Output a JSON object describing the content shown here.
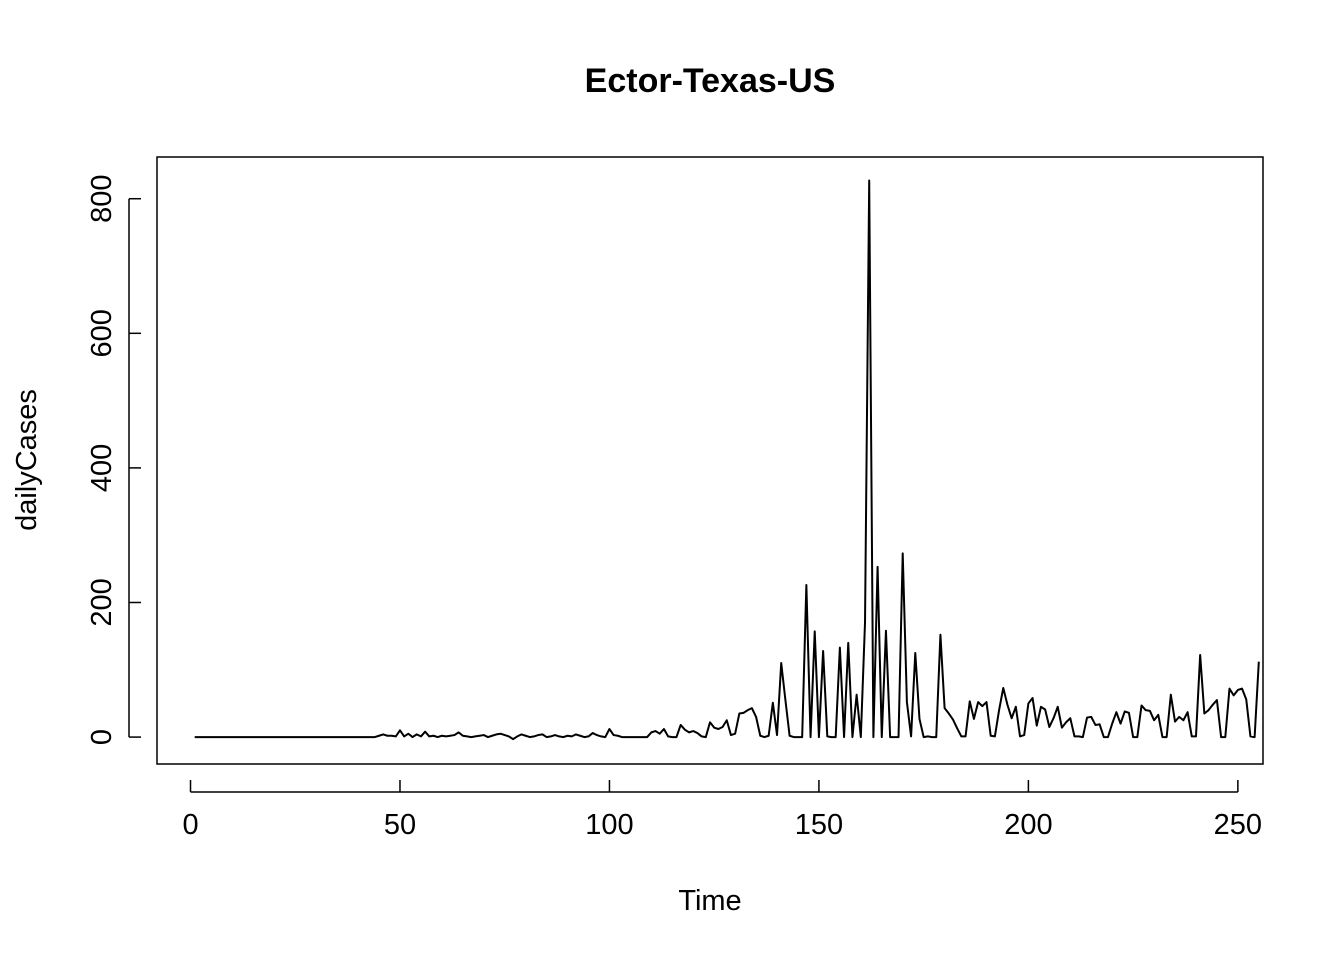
{
  "chart_data": {
    "type": "line",
    "title": "Ector-Texas-US",
    "xlabel": "Time",
    "ylabel": "dailyCases",
    "xlim": [
      -8,
      256
    ],
    "ylim": [
      -40,
      862
    ],
    "x_ticks": [
      0,
      50,
      100,
      150,
      200,
      250
    ],
    "y_ticks": [
      0,
      200,
      400,
      600,
      800
    ],
    "grid": false,
    "series": [
      {
        "x_start": 1,
        "values": [
          0,
          0,
          0,
          0,
          0,
          0,
          0,
          0,
          0,
          0,
          0,
          0,
          0,
          0,
          0,
          0,
          0,
          0,
          0,
          0,
          0,
          0,
          0,
          0,
          0,
          0,
          0,
          0,
          0,
          0,
          0,
          0,
          0,
          0,
          0,
          0,
          0,
          0,
          0,
          0,
          0,
          0,
          0,
          0,
          2,
          4,
          2,
          2,
          1,
          10,
          1,
          5,
          0,
          4,
          1,
          8,
          1,
          2,
          0,
          2,
          1,
          2,
          3,
          7,
          2,
          1,
          0,
          1,
          2,
          3,
          0,
          2,
          4,
          5,
          3,
          1,
          -3,
          1,
          4,
          2,
          0,
          1,
          3,
          4,
          0,
          1,
          3,
          1,
          0,
          2,
          1,
          4,
          2,
          0,
          1,
          6,
          3,
          1,
          0,
          12,
          3,
          2,
          0,
          0,
          0,
          0,
          0,
          0,
          0,
          7,
          9,
          5,
          12,
          1,
          0,
          0,
          18,
          11,
          7,
          9,
          6,
          1,
          0,
          22,
          14,
          12,
          15,
          25,
          3,
          5,
          35,
          36,
          40,
          43,
          30,
          2,
          0,
          2,
          51,
          3,
          110,
          55,
          2,
          0,
          0,
          0,
          226,
          0,
          157,
          0,
          128,
          1,
          0,
          0,
          133,
          0,
          140,
          0,
          63,
          0,
          170,
          827,
          0,
          253,
          0,
          158,
          0,
          0,
          0,
          273,
          52,
          1,
          125,
          27,
          0,
          1,
          0,
          0,
          152,
          43,
          35,
          26,
          13,
          1,
          1,
          53,
          27,
          52,
          46,
          52,
          2,
          1,
          40,
          73,
          48,
          28,
          45,
          1,
          3,
          50,
          58,
          17,
          45,
          41,
          15,
          28,
          45,
          14,
          22,
          28,
          1,
          1,
          0,
          29,
          30,
          18,
          19,
          0,
          0,
          20,
          37,
          20,
          38,
          36,
          0,
          0,
          47,
          40,
          39,
          25,
          33,
          0,
          0,
          63,
          23,
          30,
          25,
          37,
          1,
          1,
          122,
          35,
          40,
          48,
          55,
          0,
          0,
          72,
          62,
          70,
          72,
          56,
          1,
          0,
          112
        ]
      }
    ]
  }
}
